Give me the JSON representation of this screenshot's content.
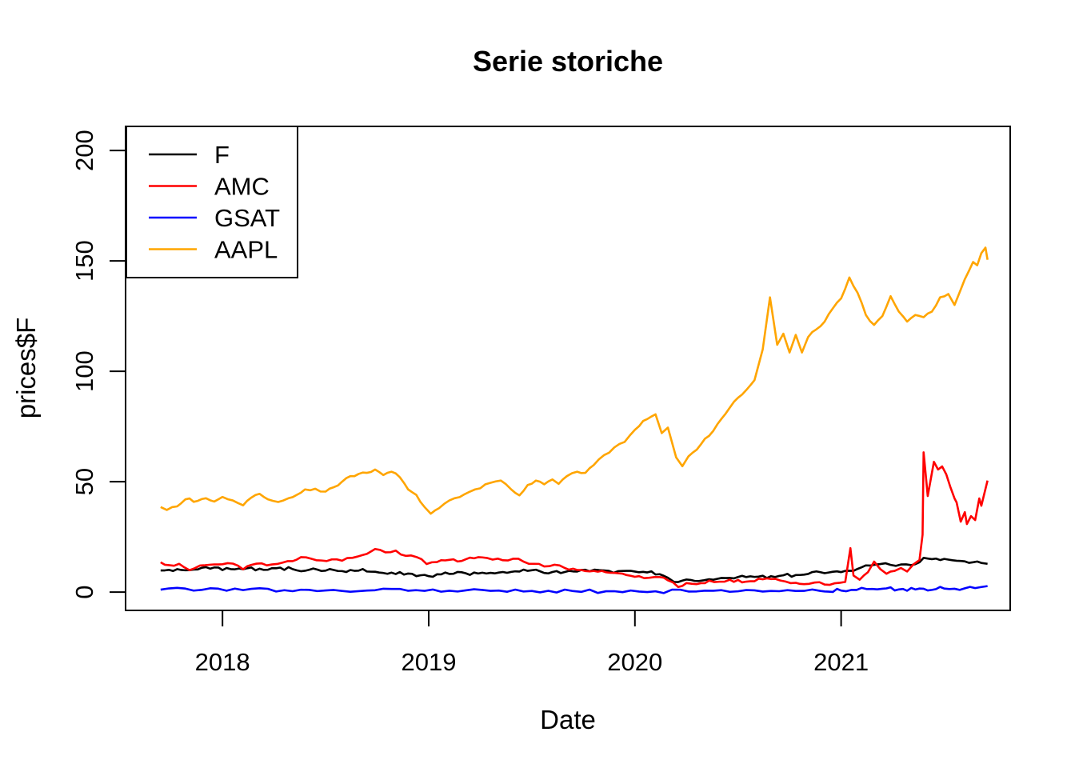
{
  "chart_data": {
    "type": "line",
    "title": "Serie storiche",
    "xlabel": "Date",
    "ylabel": "prices$F",
    "grid": false,
    "background": "#ffffff",
    "axis_color": "#000000",
    "x_range": [
      2017.53,
      2021.82
    ],
    "y_range": [
      -8.3,
      210.9
    ],
    "x_ticks": [
      2018,
      2019,
      2020,
      2021
    ],
    "x_tick_labels": [
      "2018",
      "2019",
      "2020",
      "2021"
    ],
    "y_ticks": [
      0,
      50,
      100,
      150,
      200
    ],
    "y_tick_labels": [
      "0",
      "50",
      "100",
      "150",
      "200"
    ],
    "legend_position": "topleft",
    "legend_entries": [
      {
        "label": "F",
        "color": "#000000"
      },
      {
        "label": "AMC",
        "color": "#FF0000"
      },
      {
        "label": "GSAT",
        "color": "#0000FF"
      },
      {
        "label": "AAPL",
        "color": "#FFA500"
      }
    ],
    "series": [
      {
        "name": "F",
        "color": "#000000",
        "x": [
          2017.7,
          2017.78,
          2017.86,
          2017.94,
          2018.02,
          2018.1,
          2018.18,
          2018.26,
          2018.34,
          2018.42,
          2018.5,
          2018.58,
          2018.66,
          2018.74,
          2018.82,
          2018.9,
          2018.96,
          2019.0,
          2019.06,
          2019.12,
          2019.18,
          2019.24,
          2019.3,
          2019.36,
          2019.42,
          2019.48,
          2019.54,
          2019.6,
          2019.66,
          2019.72,
          2019.78,
          2019.85,
          2019.92,
          2020.0,
          2020.06,
          2020.12,
          2020.16,
          2020.19,
          2020.23,
          2020.27,
          2020.31,
          2020.36,
          2020.42,
          2020.48,
          2020.54,
          2020.6,
          2020.66,
          2020.72,
          2020.78,
          2020.84,
          2020.9,
          2020.96,
          2021.02,
          2021.08,
          2021.14,
          2021.19,
          2021.24,
          2021.29,
          2021.34,
          2021.38,
          2021.4,
          2021.44,
          2021.48,
          2021.52,
          2021.56,
          2021.6,
          2021.64,
          2021.68,
          2021.71
        ],
        "y": [
          9.8,
          10.4,
          10.2,
          10.6,
          10.9,
          10.3,
          10.6,
          10.8,
          10.4,
          10.1,
          9.7,
          9.5,
          9.7,
          9.2,
          8.8,
          8.4,
          7.6,
          7.2,
          8.0,
          8.3,
          8.5,
          8.4,
          8.7,
          9.1,
          9.4,
          9.6,
          9.4,
          9.1,
          9.1,
          9.3,
          9.4,
          9.8,
          9.5,
          9.3,
          8.9,
          8.1,
          6.5,
          4.6,
          5.2,
          5.5,
          5.0,
          5.8,
          6.4,
          6.2,
          6.8,
          7.0,
          7.2,
          7.6,
          7.7,
          8.2,
          9.0,
          9.2,
          9.6,
          10.5,
          12.0,
          12.7,
          12.3,
          12.5,
          12.2,
          13.5,
          15.5,
          14.9,
          14.5,
          14.7,
          14.2,
          13.9,
          13.5,
          13.2,
          12.8
        ]
      },
      {
        "name": "AMC",
        "color": "#FF0000",
        "x": [
          2017.7,
          2017.74,
          2017.79,
          2017.84,
          2017.89,
          2017.94,
          2018.0,
          2018.05,
          2018.1,
          2018.14,
          2018.19,
          2018.24,
          2018.29,
          2018.34,
          2018.38,
          2018.43,
          2018.48,
          2018.53,
          2018.58,
          2018.63,
          2018.68,
          2018.74,
          2018.79,
          2018.84,
          2018.89,
          2018.94,
          2018.99,
          2019.04,
          2019.1,
          2019.16,
          2019.22,
          2019.26,
          2019.31,
          2019.36,
          2019.41,
          2019.46,
          2019.51,
          2019.56,
          2019.61,
          2019.66,
          2019.72,
          2019.78,
          2019.84,
          2019.9,
          2019.96,
          2020.02,
          2020.07,
          2020.12,
          2020.16,
          2020.21,
          2020.25,
          2020.3,
          2020.36,
          2020.41,
          2020.46,
          2020.52,
          2020.58,
          2020.64,
          2020.68,
          2020.73,
          2020.78,
          2020.82,
          2020.87,
          2020.92,
          2020.97,
          2021.02,
          2021.045,
          2021.06,
          2021.09,
          2021.13,
          2021.16,
          2021.19,
          2021.22,
          2021.26,
          2021.29,
          2021.32,
          2021.35,
          2021.38,
          2021.395,
          2021.4,
          2021.42,
          2021.45,
          2021.47,
          2021.49,
          2021.51,
          2021.53,
          2021.55,
          2021.56,
          2021.58,
          2021.6,
          2021.61,
          2021.63,
          2021.65,
          2021.67,
          2021.68,
          2021.71
        ],
        "y": [
          13.5,
          12.2,
          12.8,
          9.9,
          12.0,
          12.4,
          12.6,
          12.9,
          10.3,
          12.3,
          13.0,
          12.5,
          13.3,
          14.0,
          15.8,
          15.1,
          14.3,
          14.8,
          14.2,
          15.5,
          16.8,
          19.5,
          18.0,
          18.8,
          16.4,
          15.9,
          12.7,
          13.6,
          14.6,
          14.1,
          15.3,
          15.7,
          14.7,
          14.4,
          15.1,
          13.8,
          12.8,
          11.6,
          12.4,
          10.9,
          10.0,
          9.4,
          9.6,
          8.7,
          7.7,
          7.2,
          6.5,
          6.8,
          5.3,
          2.3,
          4.1,
          3.6,
          5.2,
          4.7,
          5.6,
          4.4,
          4.9,
          6.2,
          6.0,
          4.8,
          4.2,
          3.6,
          4.3,
          3.4,
          4.0,
          4.6,
          19.9,
          7.5,
          5.6,
          9.0,
          13.8,
          10.4,
          8.3,
          9.6,
          10.9,
          9.3,
          12.5,
          14.5,
          26.0,
          63.3,
          43.5,
          59.0,
          55.5,
          56.9,
          53.3,
          47.5,
          42.4,
          40.6,
          31.9,
          36.2,
          30.8,
          34.4,
          32.6,
          42.4,
          39.1,
          50.5
        ]
      },
      {
        "name": "GSAT",
        "color": "#0000FF",
        "x": [
          2017.7,
          2017.9,
          2018.1,
          2018.3,
          2018.5,
          2018.7,
          2018.9,
          2019.1,
          2019.3,
          2019.5,
          2019.7,
          2019.9,
          2020.1,
          2020.3,
          2020.5,
          2020.7,
          2020.9,
          2021.0,
          2021.05,
          2021.1,
          2021.15,
          2021.2,
          2021.3,
          2021.4,
          2021.5,
          2021.55,
          2021.6,
          2021.65,
          2021.68,
          2021.71
        ],
        "y": [
          1.1,
          1.0,
          0.9,
          0.85,
          0.75,
          0.7,
          0.6,
          0.6,
          0.55,
          0.5,
          0.45,
          0.4,
          0.35,
          0.3,
          0.35,
          0.4,
          0.5,
          0.7,
          1.0,
          1.9,
          1.4,
          1.5,
          1.4,
          1.5,
          1.6,
          1.5,
          1.7,
          1.8,
          2.3,
          2.7
        ]
      },
      {
        "name": "AAPL",
        "color": "#FFA500",
        "x": [
          2017.7,
          2017.73,
          2017.78,
          2017.82,
          2017.88,
          2017.92,
          2017.96,
          2018.0,
          2018.05,
          2018.1,
          2018.14,
          2018.18,
          2018.22,
          2018.27,
          2018.32,
          2018.36,
          2018.4,
          2018.45,
          2018.5,
          2018.54,
          2018.58,
          2018.62,
          2018.66,
          2018.7,
          2018.74,
          2018.78,
          2018.82,
          2018.86,
          2018.9,
          2018.94,
          2018.98,
          2019.01,
          2019.05,
          2019.1,
          2019.15,
          2019.2,
          2019.25,
          2019.3,
          2019.35,
          2019.4,
          2019.44,
          2019.48,
          2019.52,
          2019.56,
          2019.6,
          2019.63,
          2019.67,
          2019.72,
          2019.76,
          2019.8,
          2019.85,
          2019.9,
          2019.95,
          2020.0,
          2020.04,
          2020.08,
          2020.1,
          2020.13,
          2020.16,
          2020.2,
          2020.23,
          2020.26,
          2020.3,
          2020.34,
          2020.38,
          2020.42,
          2020.46,
          2020.5,
          2020.54,
          2020.58,
          2020.62,
          2020.655,
          2020.69,
          2020.72,
          2020.75,
          2020.78,
          2020.81,
          2020.84,
          2020.88,
          2020.92,
          2020.96,
          2021.0,
          2021.04,
          2021.08,
          2021.12,
          2021.16,
          2021.2,
          2021.24,
          2021.28,
          2021.32,
          2021.36,
          2021.4,
          2021.44,
          2021.48,
          2021.52,
          2021.55,
          2021.58,
          2021.62,
          2021.64,
          2021.66,
          2021.68,
          2021.7,
          2021.71
        ],
        "y": [
          38.5,
          37.2,
          38.8,
          42.0,
          41.3,
          42.5,
          41.0,
          43.1,
          41.5,
          39.3,
          42.8,
          44.5,
          42.0,
          40.8,
          42.5,
          44.0,
          46.5,
          46.8,
          45.5,
          47.5,
          50.0,
          52.5,
          53.5,
          54.0,
          55.5,
          53.0,
          54.5,
          52.0,
          46.5,
          44.0,
          38.5,
          35.5,
          38.0,
          41.5,
          43.0,
          45.5,
          47.0,
          49.5,
          50.5,
          46.5,
          43.8,
          48.5,
          50.5,
          48.8,
          51.0,
          49.0,
          52.5,
          54.5,
          54.0,
          57.5,
          62.0,
          65.5,
          68.0,
          73.5,
          77.5,
          79.5,
          80.5,
          72.0,
          74.5,
          61.0,
          57.0,
          61.5,
          64.5,
          69.5,
          73.0,
          78.5,
          83.5,
          88.0,
          91.5,
          96.0,
          110.0,
          133.5,
          112.0,
          117.0,
          108.5,
          116.5,
          108.5,
          115.5,
          119.0,
          122.5,
          128.5,
          133.0,
          142.5,
          135.5,
          125.5,
          121.0,
          125.0,
          134.0,
          127.0,
          122.5,
          125.5,
          124.5,
          127.0,
          133.5,
          135.0,
          130.0,
          137.0,
          145.5,
          149.5,
          148.0,
          153.5,
          156.0,
          150.5
        ]
      }
    ]
  }
}
